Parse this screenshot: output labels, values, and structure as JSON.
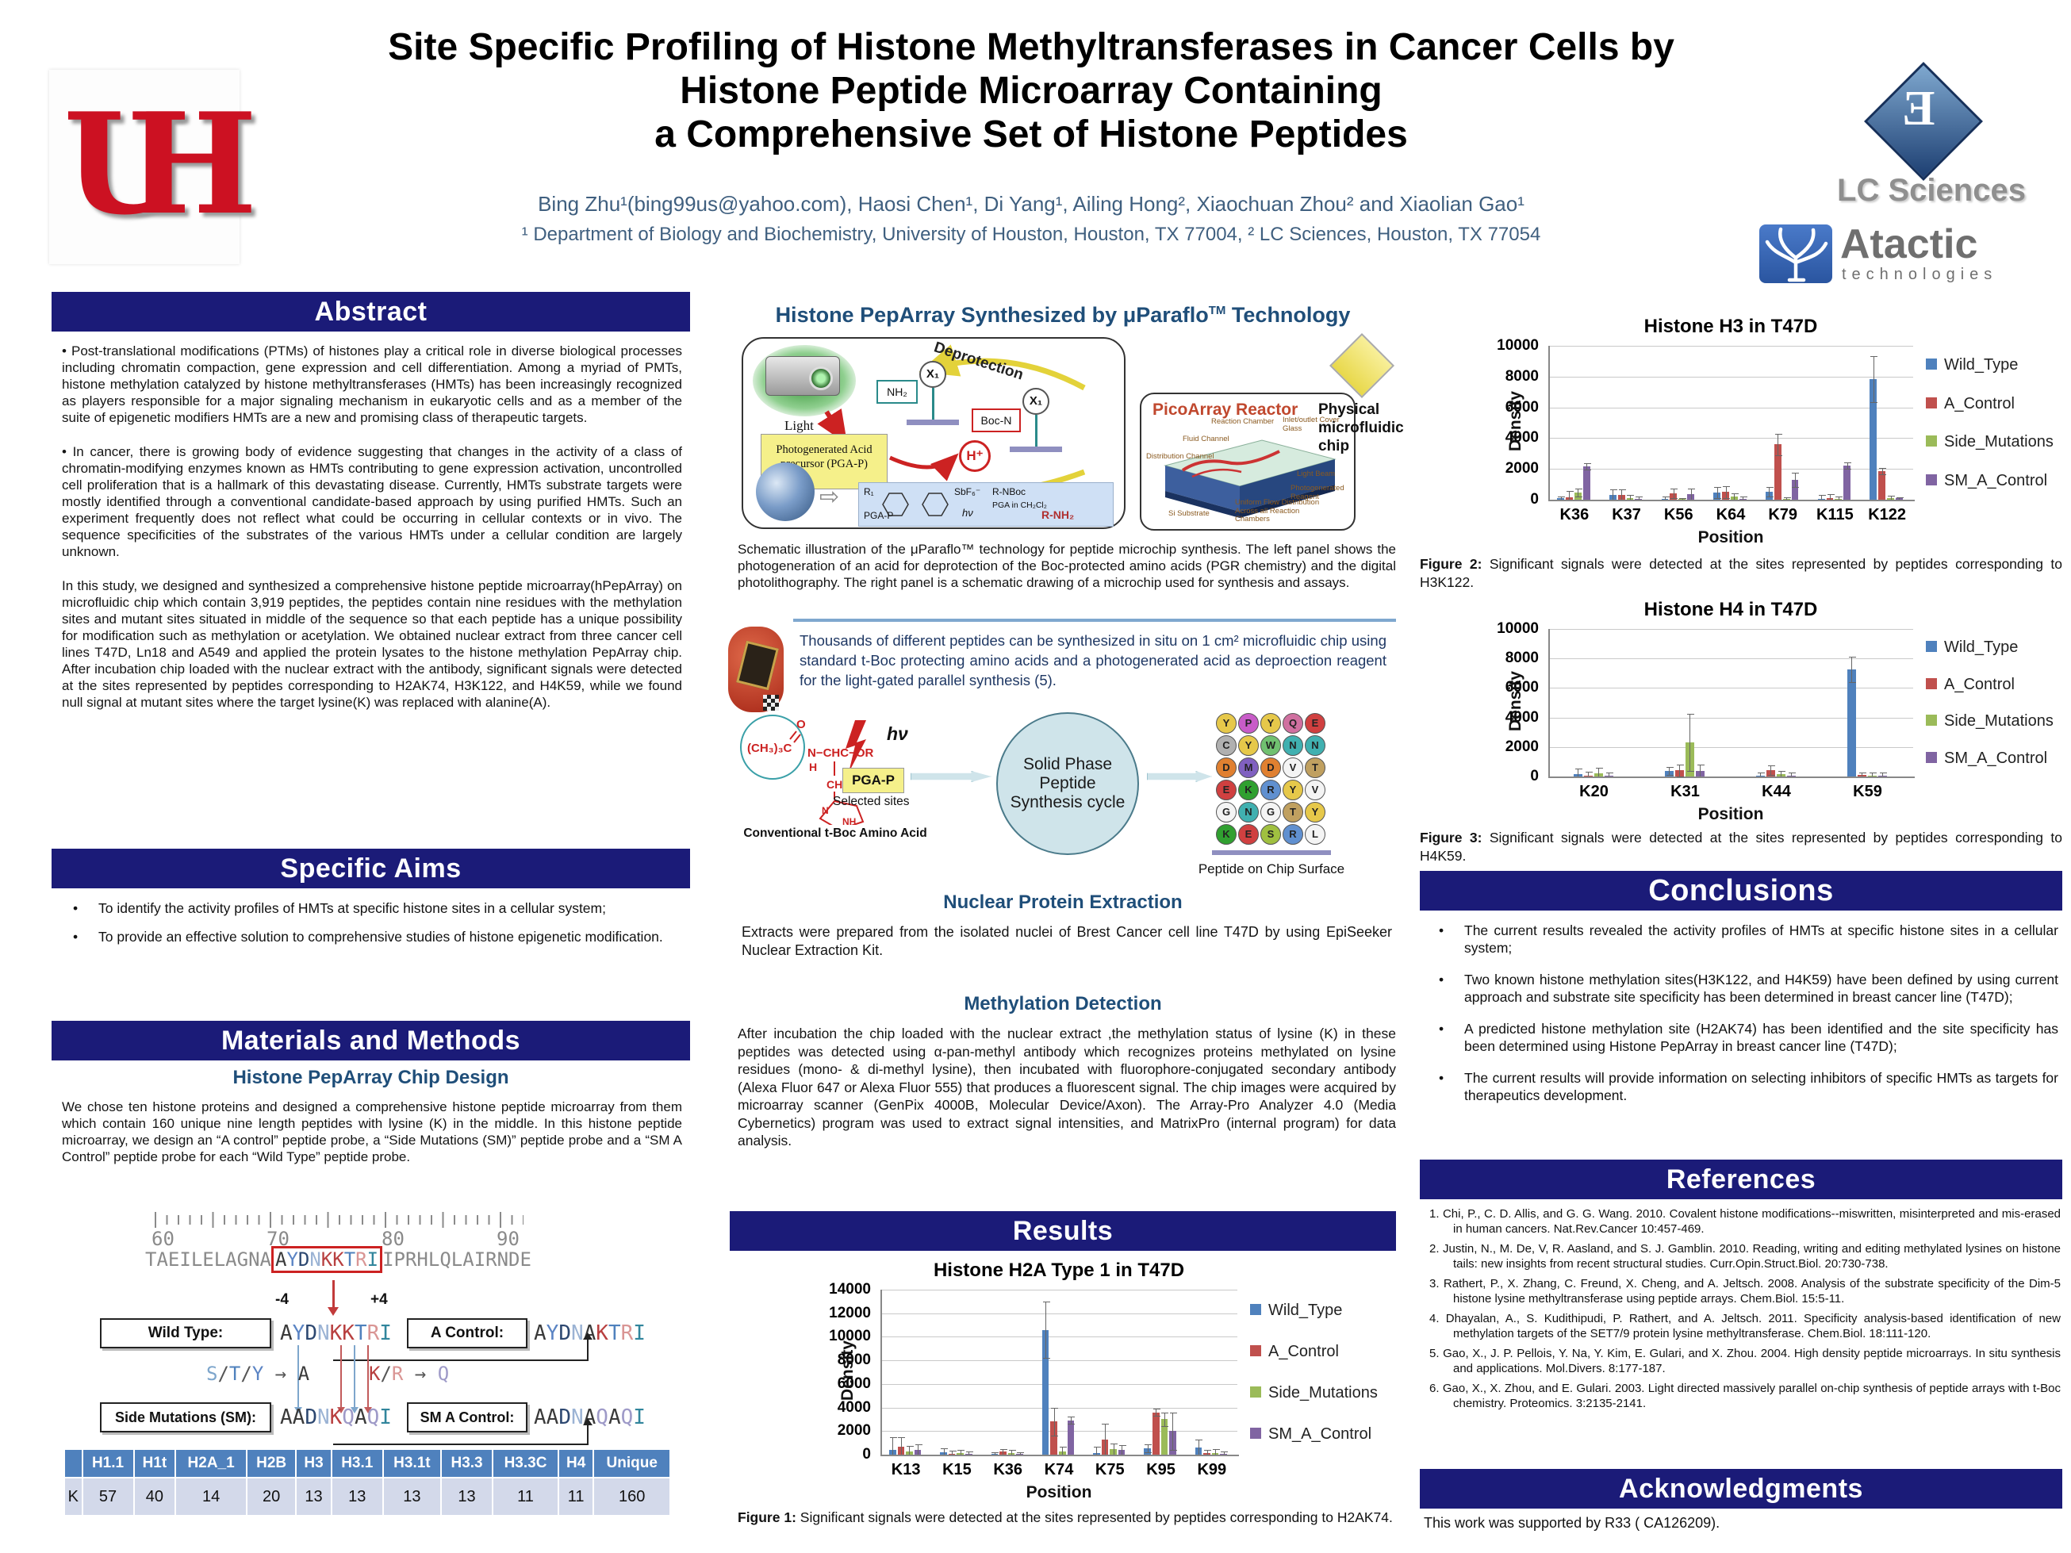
{
  "colors": {
    "navy": "#1b1b78",
    "steel_heading": "#1f4e79",
    "authors_text": "#3f5f7f",
    "picoarray_title": "#c0482e",
    "table_header_bg": "#4f81bd",
    "table_row_bg": "#d3d9ea",
    "residues": {
      "A": "#3a3a3a",
      "Y": "#5b84c4",
      "D": "#2c4770",
      "N": "#9bb3d4",
      "K": "#b84040",
      "T": "#4f81bd",
      "R": "#d99594",
      "I": "#31859c",
      "Q": "#9e9ac8",
      "S": "#7ea6cc",
      "E": "#777777",
      "G": "#777777",
      "L": "#777777",
      "P": "#777777",
      "H": "#777777",
      "V": "#777777",
      "W": "#777777",
      "M": "#777777",
      "C": "#777777",
      "F": "#777777"
    }
  },
  "header": {
    "title_line1": "Site Specific Profiling of Histone Methyltransferases in Cancer Cells by",
    "title_line2": "Histone Peptide Microarray Containing",
    "title_line3": "a Comprehensive Set of Histone Peptides",
    "authors": "Bing Zhu¹(bing99us@yahoo.com), Haosi Chen¹, Di Yang¹, Ailing Hong²,  Xiaochuan Zhou²  and  Xiaolian Gao¹",
    "affiliations": "¹ Department of Biology and Biochemistry, University of Houston, Houston, TX 77004, ² LC Sciences, Houston, TX 77054",
    "uh_logo": "UH",
    "lc_logo_glyph": "Ǝ",
    "lc_logo_text": "LC Sciences",
    "atactic_logo_text": "Atactic",
    "atactic_logo_sub": "technologies"
  },
  "abstract": {
    "heading": "Abstract",
    "paragraphs": [
      "• Post-translational modifications (PTMs) of histones play a critical role in diverse biological processes including chromatin compaction, gene expression and cell differentiation. Among a myriad of PMTs, histone methylation catalyzed by histone methyltransferases (HMTs) has been increasingly recognized as players responsible for a major signaling mechanism in eukaryotic cells and as a member of the suite of epigenetic modifiers HMTs are a new and promising class of therapeutic targets.",
      "• In cancer, there is growing body of evidence suggesting that changes in the activity of a class of chromatin-modifying enzymes known as HMTs contributing to gene expression activation, uncontrolled cell proliferation that is a hallmark of this devastating disease. Currently, HMTs substrate targets were mostly identified through a conventional candidate-based approach by using purified HMTs. Such an experiment frequently does not reflect what could be occurring in cellular contexts or in vivo. The sequence specificities of the substrates of the various HMTs under a cellular condition are largely unknown.",
      "In this study, we designed and synthesized a comprehensive histone peptide microarray(hPepArray) on microfluidic chip which contain 3,919 peptides, the peptides contain nine residues with the methylation sites  and mutant sites situated in middle of the sequence so that each peptide has a unique possibility for modification such as methylation or acetylation. We obtained nuclear extract from three cancer cell lines T47D, Ln18 and A549 and applied the protein lysates to the histone methylation PepArray chip.  After incubation chip loaded with the nuclear extract with the antibody, significant signals were detected at the sites represented by peptides corresponding to  H2AK74, H3K122, and H4K59, while we found null signal at mutant sites where the target lysine(K) was replaced with alanine(A)."
    ]
  },
  "specific_aims": {
    "heading": "Specific Aims",
    "bullets": [
      "To identify the activity profiles of HMTs at specific histone sites in a cellular system;",
      "To provide an effective solution to comprehensive studies of histone epigenetic  modification."
    ]
  },
  "materials": {
    "heading": "Materials and Methods",
    "subheading": "Histone PepArray Chip Design",
    "paragraph": "We chose ten histone proteins and designed a comprehensive histone peptide microarray from them which contain 160 unique nine length peptides with lysine (K) in the middle. In this histone peptide microarray, we design an “A control” peptide probe, a “Side Mutations (SM)” peptide probe and a “SM A Control” peptide probe for each “Wild Type” peptide probe.",
    "diagram": {
      "ruler_numbers": [
        "60",
        "70",
        "80",
        "90"
      ],
      "context_left": "TAEILELAGNA",
      "context_boxed": "AYDNKKTRI",
      "context_right": "IPRHLQLAIRNDE",
      "minus4": "-4",
      "plus4": "+4",
      "wild_type_label": "Wild Type:",
      "wild_type_seq": "AYDNKKTRI",
      "a_control_label": "A Control:",
      "a_control_seq": "AYDNAKTRI",
      "rule_left": "S/T/Y → A",
      "rule_right": "K/R → Q",
      "sm_label": "Side Mutations (SM):",
      "sm_seq": "AADNKQAQI",
      "sm_a_label": "SM A Control:",
      "sm_a_seq": "AADNAQAQI"
    },
    "table": {
      "headers": [
        "",
        "H1.1",
        "H1t",
        "H2A_1",
        "H2B",
        "H3",
        "H3.1",
        "H3.1t",
        "H3.3",
        "H3.3C",
        "H4",
        "Unique"
      ],
      "rows": [
        [
          "K",
          "57",
          "40",
          "14",
          "20",
          "13",
          "13",
          "13",
          "13",
          "11",
          "11",
          "160"
        ]
      ]
    }
  },
  "tech": {
    "heading_main": "Histone PepArray Synthesized by μParaflo",
    "heading_tm": "TM",
    "heading_tail": " Technology",
    "deprotection": "Deprotection",
    "light": "Light",
    "pga_box": "Photogenerated Acid precursor (PGA-P)",
    "nh2": "NH₂",
    "x1a": "X₁",
    "x1b": "X₁",
    "boc_n": "Boc-N",
    "h_plus": "H⁺",
    "chem_labels": [
      "R₁",
      "SbF₆⁻",
      "PGA-P",
      "hν",
      "R-NBoc",
      "PGA in CH₂Cl₂",
      "R-NH₂"
    ],
    "picoarray_title": "PicoArray Reactor",
    "picoarray_labels": [
      "Reaction Chamber",
      "Inlet/outlet Cover Glass",
      "Fluid Channel",
      "Distribution Channel",
      "Light Beam",
      "Photogenerated Reagent",
      "Uniform Flow Distribution Across all Reaction Chambers",
      "Si Substrate"
    ],
    "chip_caption": "Physical microfluidic chip",
    "caption": "Schematic illustration of the μParaflo™ technology for peptide microchip synthesis. The left panel shows the photogeneration of an acid for deprotection of the Boc-protected amino acids (PGR chemistry) and the digital photolithography. The right panel is a schematic drawing of a microchip used for synthesis and assays."
  },
  "synthesis": {
    "text": "Thousands of different peptides can be synthesized in situ on 1 cm² microfluidic chip using standard t-Boc protecting amino acids and a photogenerated acid as deproection reagent for the light-gated parallel synthesis (5).",
    "tboc": {
      "t1": "(CH₃)₃C",
      "t2": "O",
      "t3": "N−CHC−OR",
      "t4": "H",
      "t5": "CH₂",
      "t6": "N",
      "t7": "NH"
    },
    "tboc_caption": "Conventional t-Boc Amino Acid",
    "hv": "hν",
    "pgap": "PGA-P",
    "selected_sites": "Selected sites",
    "cycle": "Solid Phase Peptide Synthesis cycle",
    "chip_surface_caption": "Peptide on Chip Surface",
    "grid_columns": [
      "YCDEGK",
      "PYMKNE",
      "YWDRGS",
      "QNVYTR",
      "ENTVYL"
    ]
  },
  "nuclear": {
    "heading": "Nuclear Protein Extraction",
    "text": "Extracts were prepared from the isolated nuclei of Brest Cancer cell line T47D by using EpiSeeker Nuclear Extraction Kit."
  },
  "methylation": {
    "heading": "Methylation Detection",
    "text": "After incubation the chip loaded with the nuclear extract ,the methylation status of lysine (K)  in these peptides was detected using α-pan-methyl antibody which recognizes proteins methylated on lysine residues (mono- & di-methyl lysine), then incubated with fluorophore-conjugated secondary antibody (Alexa Fluor 647 or Alexa Fluor 555) that produces a fluorescent signal. The chip images were acquired by microarray scanner (GenPix 4000B, Molecular Device/Axon). The Array-Pro Analyzer 4.0 (Media Cybernetics) program was used to extract signal intensities, and MatrixPro (internal program) for data analysis."
  },
  "results": {
    "heading": "Results",
    "fig1_bold": "Figure 1:",
    "fig1_text": " Significant signals were detected at the sites represented by peptides corresponding to H2AK74."
  },
  "figures": {
    "fig2_bold": "Figure 2:",
    "fig2_text": " Significant signals were detected at the sites represented by peptides corresponding to H3K122.",
    "fig3_bold": "Figure 3:",
    "fig3_text": " Significant signals were detected at the sites represented by peptides corresponding to H4K59."
  },
  "conclusions": {
    "heading": "Conclusions",
    "bullets": [
      "The current results revealed the activity profiles of HMTs at specific histone sites in a cellular system;",
      "Two known histone methylation sites(H3K122, and H4K59) have been defined by using current approach and substrate site specificity has been determined in breast cancer line (T47D);",
      "A predicted histone methylation site (H2AK74) has been identified and the site specificity has been determined using Histone PepArray in breast cancer line (T47D);",
      "The current results will provide information on selecting inhibitors of specific HMTs as targets for therapeutics development."
    ]
  },
  "references": {
    "heading": "References",
    "items": [
      "1. Chi, P., C. D. Allis, and G. G. Wang. 2010. Covalent histone modifications--miswritten, misinterpreted and mis-erased in human cancers. Nat.Rev.Cancer 10:457-469.",
      "2. Justin, N., M. De, V, R. Aasland, and S. J. Gamblin. 2010. Reading, writing and editing methylated lysines on histone tails: new insights from recent structural studies. Curr.Opin.Struct.Biol. 20:730-738.",
      "3. Rathert, P., X. Zhang, C. Freund, X. Cheng, and A. Jeltsch. 2008. Analysis of the substrate specificity of the Dim-5 histone lysine methyltransferase using peptide arrays. Chem.Biol. 15:5-11.",
      "4. Dhayalan, A., S. Kudithipudi, P. Rathert, and A. Jeltsch. 2011. Specificity analysis-based identification of new methylation targets of the SET7/9 protein lysine methyltransferase. Chem.Biol. 18:111-120.",
      "5. Gao, X., J. P. Pellois, Y. Na, Y. Kim, E. Gulari, and X. Zhou. 2004. High density peptide microarrays. In situ synthesis and applications. Mol.Divers. 8:177-187.",
      "6. Gao, X., X. Zhou, and E. Gulari. 2003. Light directed massively parallel on-chip synthesis of peptide arrays with t-Boc chemistry. Proteomics. 3:2135-2141."
    ]
  },
  "acknowledgments": {
    "heading": "Acknowledgments",
    "text": "This work was supported by R33 ( CA126209)."
  },
  "chart_data": [
    {
      "id": "histone_h2a_t47d",
      "type": "bar",
      "title": "Histone H2A Type 1 in T47D",
      "xlabel": "Position",
      "ylabel": "Density",
      "ylim": [
        0,
        14000
      ],
      "ytick_step": 2000,
      "grid": true,
      "legend_position": "right",
      "categories": [
        "K13",
        "K15",
        "K36",
        "K74",
        "K75",
        "K95",
        "K99"
      ],
      "series": [
        {
          "name": "Wild_Type",
          "color": "#4F81BD",
          "values": [
            400,
            200,
            50,
            10600,
            150,
            550,
            600
          ],
          "errors": [
            1100,
            350,
            150,
            2400,
            500,
            350,
            700
          ]
        },
        {
          "name": "A_Control",
          "color": "#C0504D",
          "values": [
            700,
            100,
            250,
            2800,
            1250,
            3600,
            120
          ],
          "errors": [
            800,
            250,
            250,
            1200,
            1350,
            300,
            300
          ]
        },
        {
          "name": "Side_Mutations",
          "color": "#9BBB59",
          "values": [
            250,
            150,
            150,
            300,
            450,
            3000,
            150
          ],
          "errors": [
            500,
            250,
            250,
            400,
            500,
            600,
            300
          ]
        },
        {
          "name": "SM_A_Control",
          "color": "#8064A2",
          "values": [
            400,
            50,
            50,
            2900,
            400,
            2000,
            50
          ],
          "errors": [
            500,
            200,
            150,
            300,
            400,
            1600,
            250
          ]
        }
      ]
    },
    {
      "id": "histone_h3_t47d",
      "type": "bar",
      "title": "Histone H3 in T47D",
      "xlabel": "Position",
      "ylabel": "Density",
      "ylim": [
        0,
        10000
      ],
      "ytick_step": 2000,
      "grid": true,
      "legend_position": "right",
      "categories": [
        "K36",
        "K37",
        "K56",
        "K64",
        "K79",
        "K115",
        "K122"
      ],
      "series": [
        {
          "name": "Wild_Type",
          "color": "#4F81BD",
          "values": [
            80,
            300,
            60,
            450,
            500,
            60,
            7850
          ],
          "errors": [
            150,
            350,
            150,
            350,
            300,
            250,
            1500
          ]
        },
        {
          "name": "A_Control",
          "color": "#C0504D",
          "values": [
            150,
            300,
            400,
            500,
            3600,
            100,
            1850
          ],
          "errors": [
            400,
            350,
            300,
            400,
            700,
            250,
            200
          ]
        },
        {
          "name": "Side_Mutations",
          "color": "#9BBB59",
          "values": [
            450,
            120,
            20,
            200,
            30,
            60,
            100
          ],
          "errors": [
            250,
            200,
            100,
            200,
            100,
            150,
            150
          ]
        },
        {
          "name": "SM_A_Control",
          "color": "#8064A2",
          "values": [
            2150,
            60,
            350,
            60,
            1300,
            2200,
            80
          ],
          "errors": [
            200,
            150,
            350,
            150,
            450,
            200,
            100
          ]
        }
      ]
    },
    {
      "id": "histone_h4_t47d",
      "type": "bar",
      "title": "Histone H4 in T47D",
      "xlabel": "Position",
      "ylabel": "Density",
      "ylim": [
        0,
        10000
      ],
      "ytick_step": 2000,
      "grid": true,
      "legend_position": "right",
      "categories": [
        "K20",
        "K31",
        "K44",
        "K59"
      ],
      "series": [
        {
          "name": "Wild_Type",
          "color": "#4F81BD",
          "values": [
            150,
            380,
            40,
            7250
          ],
          "errors": [
            400,
            250,
            250,
            850
          ]
        },
        {
          "name": "A_Control",
          "color": "#C0504D",
          "values": [
            60,
            420,
            430,
            100
          ],
          "errors": [
            250,
            400,
            300,
            150
          ]
        },
        {
          "name": "Side_Mutations",
          "color": "#9BBB59",
          "values": [
            200,
            2300,
            150,
            40
          ],
          "errors": [
            400,
            1950,
            250,
            250
          ]
        },
        {
          "name": "SM_A_Control",
          "color": "#8064A2",
          "values": [
            40,
            370,
            40,
            40
          ],
          "errors": [
            250,
            430,
            250,
            250
          ]
        }
      ]
    }
  ]
}
